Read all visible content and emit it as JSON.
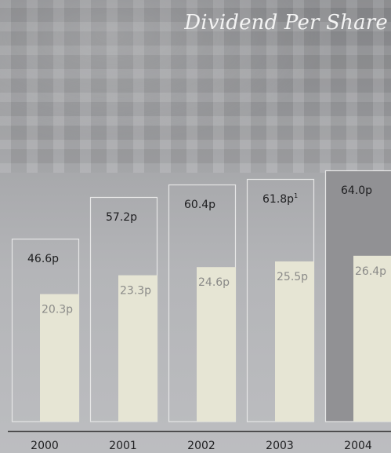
{
  "chart_data": {
    "type": "bar",
    "title": "Dividend Per Share",
    "categories": [
      "2000",
      "2001",
      "2002",
      "2003",
      "2004"
    ],
    "series": [
      {
        "values": [
          46.6,
          57.2,
          60.4,
          61.8,
          64.0
        ]
      },
      {
        "values": [
          20.3,
          23.3,
          24.6,
          25.5,
          26.4
        ]
      }
    ],
    "total_labels": [
      "46.6p",
      "57.2p",
      "60.4p",
      "61.8p",
      "64.0p"
    ],
    "inner_labels": [
      "20.3p",
      "23.3p",
      "24.6p",
      "25.5p",
      "26.4p"
    ],
    "footnote_marks": [
      "",
      "",
      "",
      "1",
      ""
    ],
    "highlight_category": "2004",
    "colors": {
      "outline_bar_border": "#e6e6e6",
      "highlight_bar_fill": "#919194",
      "inner_bar_fill": "#e6e5d4",
      "axis_line": "#444444"
    }
  }
}
